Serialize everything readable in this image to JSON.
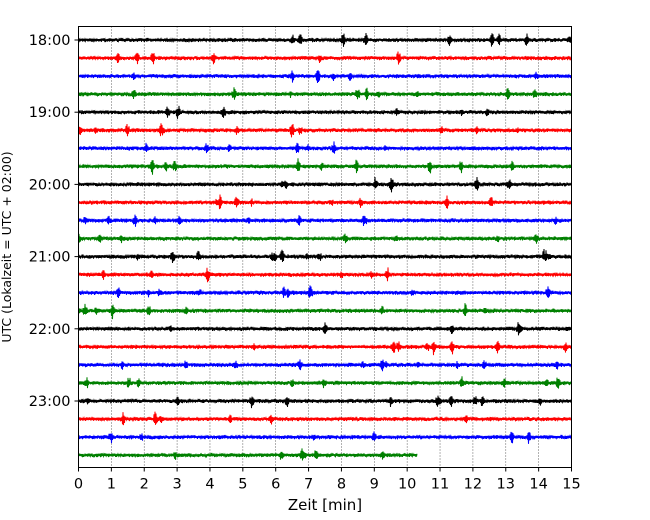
{
  "chart_data": {
    "type": "line",
    "title": "",
    "xlabel": "Zeit  [min]",
    "ylabel": "UTC (Lokalzeit = UTC + 02:00)",
    "xlim": [
      0,
      15
    ],
    "x_ticks": [
      "0",
      "1",
      "2",
      "3",
      "4",
      "5",
      "6",
      "7",
      "8",
      "9",
      "10",
      "11",
      "12",
      "13",
      "14",
      "15"
    ],
    "y_ticks": [
      {
        "label": "18:00",
        "row": 0
      },
      {
        "label": "19:00",
        "row": 4
      },
      {
        "label": "20:00",
        "row": 8
      },
      {
        "label": "21:00",
        "row": 12
      },
      {
        "label": "22:00",
        "row": 16
      },
      {
        "label": "23:00",
        "row": 20
      }
    ],
    "grid": "vertical-dotted",
    "colors": [
      "#000000",
      "#ff0000",
      "#0000ff",
      "#008000"
    ],
    "series": [
      {
        "start": "18:00",
        "end_min": 15,
        "color": "#000000"
      },
      {
        "start": "18:15",
        "end_min": 15,
        "color": "#ff0000"
      },
      {
        "start": "18:30",
        "end_min": 15,
        "color": "#0000ff"
      },
      {
        "start": "18:45",
        "end_min": 15,
        "color": "#008000"
      },
      {
        "start": "19:00",
        "end_min": 15,
        "color": "#000000"
      },
      {
        "start": "19:15",
        "end_min": 15,
        "color": "#ff0000"
      },
      {
        "start": "19:30",
        "end_min": 15,
        "color": "#0000ff"
      },
      {
        "start": "19:45",
        "end_min": 15,
        "color": "#008000"
      },
      {
        "start": "20:00",
        "end_min": 15,
        "color": "#000000"
      },
      {
        "start": "20:15",
        "end_min": 15,
        "color": "#ff0000"
      },
      {
        "start": "20:30",
        "end_min": 15,
        "color": "#0000ff"
      },
      {
        "start": "20:45",
        "end_min": 15,
        "color": "#008000"
      },
      {
        "start": "21:00",
        "end_min": 15,
        "color": "#000000"
      },
      {
        "start": "21:15",
        "end_min": 15,
        "color": "#ff0000"
      },
      {
        "start": "21:30",
        "end_min": 15,
        "color": "#0000ff"
      },
      {
        "start": "21:45",
        "end_min": 15,
        "color": "#008000"
      },
      {
        "start": "22:00",
        "end_min": 15,
        "color": "#000000"
      },
      {
        "start": "22:15",
        "end_min": 15,
        "color": "#ff0000"
      },
      {
        "start": "22:30",
        "end_min": 15,
        "color": "#0000ff"
      },
      {
        "start": "22:45",
        "end_min": 15,
        "color": "#008000"
      },
      {
        "start": "23:00",
        "end_min": 15,
        "color": "#000000"
      },
      {
        "start": "23:15",
        "end_min": 15,
        "color": "#ff0000"
      },
      {
        "start": "23:30",
        "end_min": 15,
        "color": "#0000ff"
      },
      {
        "start": "23:45",
        "end_min": 10.3,
        "color": "#008000"
      }
    ]
  }
}
